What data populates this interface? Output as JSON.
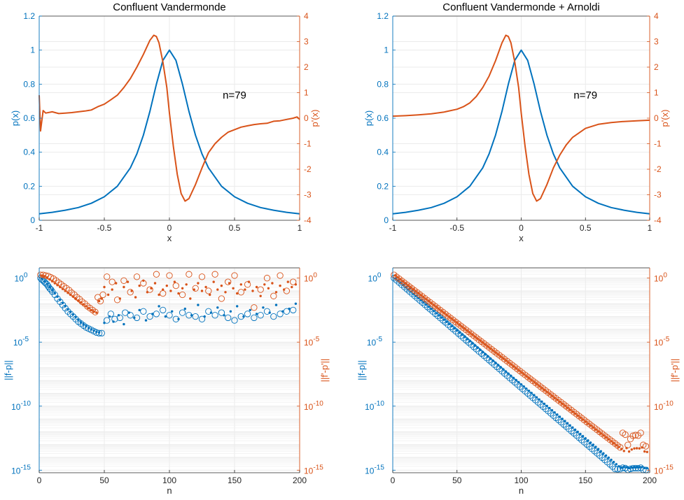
{
  "colors": {
    "blue": "#0072bd",
    "orange": "#d95319",
    "axis": "#262626",
    "grid": "#ebebeb",
    "gridMinor": "#f4f4f4"
  },
  "chart_data": [
    {
      "type": "line",
      "title": "Confluent Vandermonde",
      "annotation": "n=79",
      "xlabel": "x",
      "ylabel_left": "p(x)",
      "ylabel_right": "p'(x)",
      "xlim": [
        -1,
        1
      ],
      "xticks": [
        -1,
        -0.5,
        0,
        0.5,
        1
      ],
      "xticklabels": [
        "-1",
        "-0.5",
        "0",
        "0.5",
        "1"
      ],
      "ylim_left": [
        0,
        1.2
      ],
      "yticks_left": [
        0,
        0.2,
        0.4,
        0.6,
        0.8,
        1,
        1.2
      ],
      "yticklabels_left": [
        "0",
        "0.2",
        "0.4",
        "0.6",
        "0.8",
        "1",
        "1.2"
      ],
      "ylim_right": [
        -4,
        4
      ],
      "yticks_right": [
        -4,
        -3,
        -2,
        -1,
        0,
        1,
        2,
        3,
        4
      ],
      "yticklabels_right": [
        "-4",
        "-3",
        "-2",
        "-1",
        "0",
        "1",
        "2",
        "3",
        "4"
      ],
      "grid": true,
      "series": [
        {
          "axis": "left",
          "color": "blue",
          "x": [
            -1,
            -0.9,
            -0.8,
            -0.7,
            -0.6,
            -0.5,
            -0.4,
            -0.3,
            -0.25,
            -0.2,
            -0.15,
            -0.1,
            -0.05,
            0,
            0.05,
            0.1,
            0.15,
            0.2,
            0.25,
            0.3,
            0.4,
            0.5,
            0.6,
            0.7,
            0.8,
            0.9,
            1
          ],
          "y": [
            0.038,
            0.047,
            0.059,
            0.075,
            0.1,
            0.138,
            0.2,
            0.308,
            0.39,
            0.5,
            0.64,
            0.8,
            0.94,
            1,
            0.94,
            0.8,
            0.64,
            0.5,
            0.39,
            0.308,
            0.2,
            0.138,
            0.1,
            0.075,
            0.059,
            0.047,
            0.038
          ]
        },
        {
          "axis": "right",
          "color": "orange",
          "x": [
            -1,
            -0.99,
            -0.97,
            -0.95,
            -0.9,
            -0.85,
            -0.8,
            -0.75,
            -0.7,
            -0.65,
            -0.6,
            -0.55,
            -0.5,
            -0.45,
            -0.4,
            -0.35,
            -0.3,
            -0.25,
            -0.2,
            -0.15,
            -0.12,
            -0.1,
            -0.08,
            -0.05,
            -0.02,
            0,
            0.03,
            0.06,
            0.09,
            0.12,
            0.15,
            0.2,
            0.25,
            0.3,
            0.35,
            0.4,
            0.45,
            0.5,
            0.55,
            0.6,
            0.65,
            0.7,
            0.75,
            0.8,
            0.85,
            0.9,
            0.95,
            0.98,
            1
          ],
          "y": [
            0.9,
            -0.5,
            0.3,
            0.2,
            0.25,
            0.18,
            0.2,
            0.22,
            0.25,
            0.28,
            0.32,
            0.45,
            0.55,
            0.72,
            0.9,
            1.2,
            1.55,
            2.0,
            2.5,
            3.05,
            3.25,
            3.2,
            2.95,
            2.2,
            1.2,
            0.2,
            -1.1,
            -2.2,
            -2.95,
            -3.25,
            -3.15,
            -2.6,
            -1.95,
            -1.35,
            -1.0,
            -0.75,
            -0.55,
            -0.45,
            -0.35,
            -0.3,
            -0.25,
            -0.22,
            -0.2,
            -0.12,
            -0.1,
            -0.05,
            0.0,
            0.05,
            -0.05
          ]
        }
      ]
    },
    {
      "type": "line",
      "title": "Confluent Vandermonde + Arnoldi",
      "annotation": "n=79",
      "xlabel": "x",
      "ylabel_left": "p(x)",
      "ylabel_right": "p'(x)",
      "xlim": [
        -1,
        1
      ],
      "xticks": [
        -1,
        -0.5,
        0,
        0.5,
        1
      ],
      "xticklabels": [
        "-1",
        "-0.5",
        "0",
        "0.5",
        "1"
      ],
      "ylim_left": [
        0,
        1.2
      ],
      "yticks_left": [
        0,
        0.2,
        0.4,
        0.6,
        0.8,
        1,
        1.2
      ],
      "yticklabels_left": [
        "0",
        "0.2",
        "0.4",
        "0.6",
        "0.8",
        "1",
        "1.2"
      ],
      "ylim_right": [
        -4,
        4
      ],
      "yticks_right": [
        -4,
        -3,
        -2,
        -1,
        0,
        1,
        2,
        3,
        4
      ],
      "yticklabels_right": [
        "-4",
        "-3",
        "-2",
        "-1",
        "0",
        "1",
        "2",
        "3",
        "4"
      ],
      "grid": true,
      "series": [
        {
          "axis": "left",
          "color": "blue",
          "x": [
            -1,
            -0.9,
            -0.8,
            -0.7,
            -0.6,
            -0.5,
            -0.4,
            -0.3,
            -0.25,
            -0.2,
            -0.15,
            -0.1,
            -0.05,
            0,
            0.05,
            0.1,
            0.15,
            0.2,
            0.25,
            0.3,
            0.4,
            0.5,
            0.6,
            0.7,
            0.8,
            0.9,
            1
          ],
          "y": [
            0.038,
            0.047,
            0.059,
            0.075,
            0.1,
            0.138,
            0.2,
            0.308,
            0.39,
            0.5,
            0.64,
            0.8,
            0.94,
            1,
            0.94,
            0.8,
            0.64,
            0.5,
            0.39,
            0.308,
            0.2,
            0.138,
            0.1,
            0.075,
            0.059,
            0.047,
            0.038
          ]
        },
        {
          "axis": "right",
          "color": "orange",
          "x": [
            -1,
            -0.9,
            -0.8,
            -0.7,
            -0.6,
            -0.5,
            -0.45,
            -0.4,
            -0.35,
            -0.3,
            -0.25,
            -0.2,
            -0.15,
            -0.12,
            -0.1,
            -0.08,
            -0.05,
            -0.02,
            0,
            0.03,
            0.06,
            0.09,
            0.12,
            0.15,
            0.2,
            0.25,
            0.3,
            0.35,
            0.4,
            0.5,
            0.6,
            0.7,
            0.8,
            0.9,
            1
          ],
          "y": [
            0.08,
            0.1,
            0.13,
            0.17,
            0.24,
            0.35,
            0.45,
            0.6,
            0.85,
            1.2,
            1.65,
            2.25,
            2.95,
            3.25,
            3.2,
            2.95,
            2.2,
            1.2,
            0.2,
            -1.1,
            -2.2,
            -2.95,
            -3.25,
            -3.15,
            -2.6,
            -1.95,
            -1.45,
            -1.05,
            -0.75,
            -0.4,
            -0.24,
            -0.17,
            -0.13,
            -0.1,
            -0.08
          ]
        }
      ]
    },
    {
      "type": "scatter",
      "title": "",
      "xlabel": "n",
      "ylabel_left": "||f-p||",
      "ylabel_right": "||f'-p'||",
      "xlim": [
        0,
        200
      ],
      "xticks": [
        0,
        50,
        100,
        150,
        200
      ],
      "xticklabels": [
        "0",
        "50",
        "100",
        "150",
        "200"
      ],
      "yscale": "log",
      "ylim_exp": [
        -15.2,
        0.8
      ],
      "ytick_exponents": [
        0,
        -5,
        -10,
        -15
      ],
      "yticks_left": [
        "10^0",
        "10^-5",
        "10^-10",
        "10^-15"
      ],
      "yticks_right": [
        "10^0",
        "10^-5",
        "10^-10",
        "10^-15"
      ],
      "grid": true,
      "series": [
        {
          "name": "",
          "marker": "circle-open",
          "color": "blue",
          "kind": "value",
          "x": [
            1,
            2,
            3,
            4,
            5,
            6,
            7,
            8,
            9,
            10,
            12,
            14,
            16,
            18,
            20,
            22,
            24,
            26,
            28,
            30,
            32,
            34,
            36,
            38,
            40,
            42,
            44,
            46,
            48,
            52,
            55,
            58,
            62,
            66,
            70,
            75,
            80,
            85,
            90,
            95,
            100,
            105,
            110,
            115,
            120,
            125,
            130,
            135,
            140,
            145,
            150,
            155,
            160,
            165,
            170,
            175,
            180,
            185,
            190,
            195
          ],
          "log10y": [
            0.0,
            -0.1,
            -0.2,
            -0.3,
            -0.4,
            -0.5,
            -0.65,
            -0.8,
            -0.9,
            -1.05,
            -1.3,
            -1.6,
            -1.85,
            -2.1,
            -2.35,
            -2.6,
            -2.8,
            -3.0,
            -3.2,
            -3.4,
            -3.55,
            -3.7,
            -3.85,
            -3.95,
            -4.05,
            -4.15,
            -4.25,
            -4.3,
            -4.3,
            -3.3,
            -2.8,
            -3.2,
            -3.1,
            -2.7,
            -2.9,
            -3.1,
            -2.6,
            -3.0,
            -2.8,
            -2.5,
            -2.9,
            -3.2,
            -2.7,
            -2.9,
            -3.0,
            -3.2,
            -2.6,
            -2.9,
            -2.7,
            -3.1,
            -3.3,
            -3.0,
            -2.8,
            -3.1,
            -2.9,
            -2.6,
            -3.0,
            -2.8,
            -2.6,
            -2.5
          ]
        },
        {
          "name": "",
          "marker": "dot",
          "color": "blue",
          "kind": "value",
          "x": [
            2,
            4,
            6,
            8,
            10,
            12,
            14,
            16,
            18,
            20,
            22,
            24,
            26,
            28,
            30,
            32,
            34,
            36,
            38,
            40,
            42,
            44,
            46,
            50,
            54,
            57,
            61,
            65,
            69,
            73,
            77,
            82,
            87,
            92,
            97,
            102,
            107,
            112,
            117,
            122,
            127,
            132,
            137,
            142,
            147,
            152,
            157,
            162,
            167,
            172,
            177,
            182,
            187,
            192,
            197
          ],
          "log10y": [
            -0.05,
            -0.25,
            -0.45,
            -0.7,
            -0.95,
            -1.2,
            -1.45,
            -1.7,
            -1.95,
            -2.2,
            -2.45,
            -2.65,
            -2.85,
            -3.05,
            -3.25,
            -3.45,
            -3.6,
            -3.75,
            -3.9,
            -4.0,
            -4.1,
            -4.2,
            -4.25,
            -3.5,
            -3.0,
            -3.4,
            -2.9,
            -3.6,
            -2.7,
            -3.1,
            -2.5,
            -3.3,
            -2.8,
            -2.2,
            -3.0,
            -2.6,
            -3.2,
            -2.4,
            -2.9,
            -2.1,
            -3.0,
            -2.7,
            -2.3,
            -2.9,
            -2.6,
            -2.2,
            -3.0,
            -2.5,
            -2.8,
            -2.3,
            -2.7,
            -2.1,
            -2.6,
            -2.4,
            -2.0
          ]
        },
        {
          "name": "",
          "marker": "circle-open",
          "color": "orange",
          "kind": "derivative",
          "x": [
            1,
            3,
            5,
            7,
            9,
            11,
            13,
            15,
            17,
            19,
            21,
            23,
            25,
            27,
            29,
            31,
            33,
            35,
            37,
            39,
            41,
            43,
            45,
            47,
            49,
            52,
            56,
            60,
            65,
            70,
            75,
            80,
            85,
            90,
            95,
            100,
            105,
            110,
            115,
            120,
            125,
            130,
            135,
            140,
            145,
            150,
            155,
            160,
            165,
            170,
            175,
            180,
            185,
            190,
            195
          ],
          "log10y": [
            0.25,
            0.25,
            0.2,
            0.15,
            0.05,
            -0.05,
            -0.2,
            -0.35,
            -0.5,
            -0.65,
            -0.8,
            -0.95,
            -1.15,
            -1.3,
            -1.5,
            -1.65,
            -1.85,
            -2.0,
            -2.2,
            -2.35,
            -2.5,
            -2.65,
            -1.5,
            -1.8,
            -1.3,
            0.1,
            -0.3,
            -1.7,
            -0.2,
            -1.1,
            0.1,
            -0.4,
            -0.9,
            0.3,
            -1.2,
            0.2,
            -0.6,
            -1.3,
            0.3,
            -0.8,
            0.1,
            -1.0,
            0.3,
            -1.6,
            -0.3,
            0.2,
            -1.1,
            -0.5,
            -2.3,
            -0.9,
            0.0,
            -1.4,
            0.2,
            -1.0,
            -0.3
          ]
        },
        {
          "name": "",
          "marker": "dot",
          "color": "orange",
          "kind": "derivative",
          "x": [
            2,
            4,
            6,
            8,
            10,
            12,
            14,
            16,
            18,
            20,
            22,
            24,
            26,
            28,
            30,
            32,
            34,
            36,
            38,
            40,
            42,
            44,
            46,
            48,
            50,
            53,
            56,
            59,
            62,
            65,
            68,
            71,
            74,
            77,
            80,
            83,
            86,
            89,
            92,
            95,
            98,
            101,
            104,
            107,
            110,
            113,
            116,
            119,
            122,
            125,
            128,
            131,
            134,
            137,
            140,
            143,
            146,
            149,
            152,
            155,
            158,
            161,
            164,
            167,
            170,
            173,
            176,
            179,
            182,
            185,
            188,
            191,
            194,
            197
          ],
          "log10y": [
            0.2,
            0.15,
            0.05,
            -0.1,
            -0.25,
            -0.4,
            -0.55,
            -0.7,
            -0.85,
            -1.0,
            -1.15,
            -1.3,
            -1.45,
            -1.6,
            -1.75,
            -1.9,
            -2.05,
            -2.2,
            -2.35,
            -2.5,
            -2.6,
            -2.7,
            -1.8,
            -1.6,
            -0.7,
            -1.3,
            -0.9,
            -0.4,
            -1.6,
            -0.7,
            -0.3,
            -1.0,
            -1.5,
            -0.6,
            -0.2,
            -1.1,
            -0.8,
            -0.4,
            -1.3,
            -0.9,
            -0.6,
            -1.0,
            -0.3,
            -1.2,
            -0.8,
            -0.5,
            -1.6,
            -0.9,
            -0.4,
            -1.0,
            -0.7,
            -1.3,
            -0.3,
            -0.9,
            -0.6,
            -1.1,
            -0.4,
            -0.8,
            -1.2,
            -0.5,
            -0.9,
            -0.3,
            -1.0,
            -0.7,
            -1.4,
            -0.5,
            -0.8,
            -0.4,
            -1.1,
            -0.6,
            -0.9,
            -0.3,
            -0.7,
            -0.5
          ]
        }
      ]
    },
    {
      "type": "scatter",
      "title": "",
      "xlabel": "n",
      "ylabel_left": "||f-p||",
      "ylabel_right": "||f'-p'||",
      "xlim": [
        0,
        200
      ],
      "xticks": [
        0,
        50,
        100,
        150,
        200
      ],
      "xticklabels": [
        "0",
        "50",
        "100",
        "150",
        "200"
      ],
      "yscale": "log",
      "ylim_exp": [
        -15.2,
        0.8
      ],
      "ytick_exponents": [
        0,
        -5,
        -10,
        -15
      ],
      "yticks_left": [
        "10^0",
        "10^-5",
        "10^-10",
        "10^-15"
      ],
      "yticks_right": [
        "10^0",
        "10^-5",
        "10^-10",
        "10^-15"
      ],
      "grid": true,
      "series": [
        {
          "name": "",
          "marker": "circle-open",
          "color": "blue",
          "kind": "value",
          "x_start": 1,
          "x_step": 2,
          "count": 99,
          "log10y_rule": "linear 0.0 at n=1 to -14.8 at n=172, then near -14.9 with jitter"
        },
        {
          "name": "",
          "marker": "dot",
          "color": "blue",
          "kind": "value",
          "x_start": 2,
          "x_step": 2,
          "count": 99,
          "log10y_rule": "linear -0.05 at n=2 to -14.7 at n=176, then near -14.8"
        },
        {
          "name": "",
          "marker": "circle-open",
          "color": "orange",
          "kind": "derivative",
          "x_start": 1,
          "x_step": 2,
          "count": 99,
          "log10y_rule": "linear 0.25 at n=1 to -13.3 at n=178, then near -12.5 with scatter"
        },
        {
          "name": "",
          "marker": "dot",
          "color": "orange",
          "kind": "derivative",
          "x_start": 2,
          "x_step": 2,
          "count": 99,
          "log10y_rule": "linear 0.2 at n=2 to -13.5 at n=180, then near -13.4"
        }
      ]
    }
  ]
}
